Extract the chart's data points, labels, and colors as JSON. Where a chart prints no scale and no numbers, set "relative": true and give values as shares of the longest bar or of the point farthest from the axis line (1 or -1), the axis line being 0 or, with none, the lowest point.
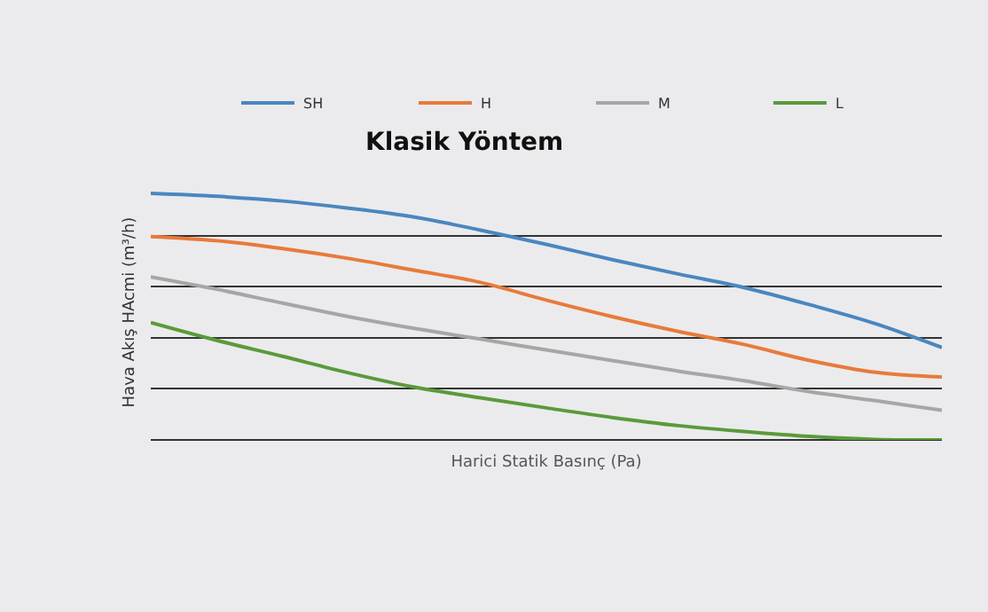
{
  "chart_data": {
    "type": "line",
    "title": "Klasik Yöntem",
    "xlabel": "Harici Statik Basınç (Pa)",
    "ylabel": "Hava Akış HAcmi (m³/h)",
    "relative": true,
    "grid": "y",
    "legend": "top right",
    "marker": "none",
    "line_style": "solid",
    "categories": [
      null,
      null,
      null,
      null,
      null,
      null,
      null,
      null,
      null,
      null,
      null,
      null,
      null
    ],
    "series": [
      {
        "name": "SH",
        "color": "#4a86c0",
        "values": [
          1,
          0.988,
          0.969,
          0.94,
          0.904,
          0.851,
          0.793,
          0.731,
          0.673,
          0.618,
          0.548,
          0.471,
          0.375
        ]
      },
      {
        "name": "H",
        "color": "#e87a3a",
        "values": [
          0.825,
          0.808,
          0.776,
          0.736,
          0.688,
          0.639,
          0.567,
          0.5,
          0.44,
          0.387,
          0.322,
          0.274,
          0.255
        ]
      },
      {
        "name": "M",
        "color": "#a6a6a6",
        "values": [
          0.661,
          0.611,
          0.555,
          0.5,
          0.452,
          0.409,
          0.365,
          0.322,
          0.279,
          0.24,
          0.195,
          0.159,
          0.12
        ]
      },
      {
        "name": "L",
        "color": "#5a9a3a",
        "values": [
          0.476,
          0.404,
          0.339,
          0.272,
          0.214,
          0.171,
          0.13,
          0.091,
          0.058,
          0.034,
          0.014,
          0.002,
          0
        ]
      }
    ]
  }
}
